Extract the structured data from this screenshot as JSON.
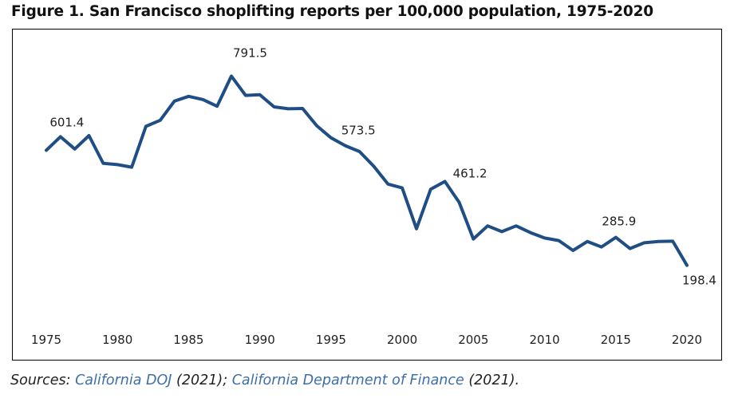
{
  "title": "Figure 1. San Francisco shoplifting reports per 100,000 population, 1975-2020",
  "sources": {
    "prefix": "Sources: ",
    "link1": "California DOJ",
    "mid": " (2021); ",
    "link2": "California Department of Finance",
    "suffix": " (2021)."
  },
  "chart_data": {
    "type": "line",
    "title": "Figure 1. San Francisco shoplifting reports per 100,000 population, 1975-2020",
    "xlabel": "",
    "ylabel": "",
    "xlim": [
      1975,
      2020
    ],
    "ylim": [
      0,
      850
    ],
    "grid": false,
    "line_color": "#1f4e85",
    "x_ticks": [
      1975,
      1980,
      1985,
      1990,
      1995,
      2000,
      2005,
      2010,
      2015,
      2020
    ],
    "series": [
      {
        "name": "Shoplifting reports per 100,000 population",
        "x": [
          1975,
          1976,
          1977,
          1978,
          1979,
          1980,
          1981,
          1982,
          1983,
          1984,
          1985,
          1986,
          1987,
          1988,
          1989,
          1990,
          1991,
          1992,
          1993,
          1994,
          1995,
          1996,
          1997,
          1998,
          1999,
          2000,
          2001,
          2002,
          2003,
          2004,
          2005,
          2006,
          2007,
          2008,
          2009,
          2010,
          2011,
          2012,
          2013,
          2014,
          2015,
          2016,
          2017,
          2018,
          2019,
          2020
        ],
        "values": [
          559,
          601.4,
          563,
          605,
          518,
          514,
          506,
          634,
          653,
          713,
          728,
          718,
          697,
          791.5,
          731,
          733,
          695,
          689,
          690,
          636,
          598,
          573.5,
          555,
          509,
          453,
          441,
          313,
          437,
          461.2,
          396,
          281,
          322,
          304,
          322,
          301,
          284,
          276,
          245,
          273,
          256,
          285.9,
          251,
          269,
          273,
          274,
          198.4
        ]
      }
    ],
    "annotations": [
      {
        "x": 1976,
        "y": 601.4,
        "text": "601.4"
      },
      {
        "x": 1988,
        "y": 791.5,
        "text": "791.5"
      },
      {
        "x": 1996,
        "y": 573.5,
        "text": "573.5"
      },
      {
        "x": 2003,
        "y": 461.2,
        "text": "461.2"
      },
      {
        "x": 2015,
        "y": 285.9,
        "text": "285.9"
      },
      {
        "x": 2020,
        "y": 198.4,
        "text": "198.4"
      }
    ]
  }
}
